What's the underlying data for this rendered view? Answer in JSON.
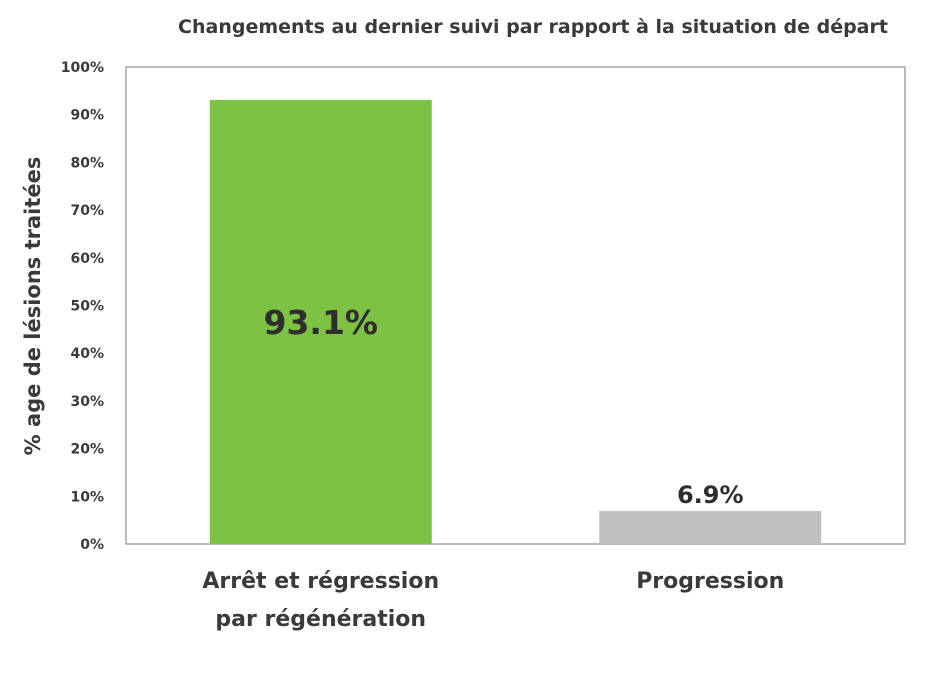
{
  "chart_data": {
    "type": "bar",
    "title": "Changements au dernier suivi par rapport à la situation de départ",
    "ylabel": "% age de lésions traitées",
    "xlabel": "",
    "ylim": [
      0,
      100
    ],
    "yticks": [
      "0%",
      "10%",
      "20%",
      "30%",
      "40%",
      "50%",
      "60%",
      "70%",
      "80%",
      "90%",
      "100%"
    ],
    "categories": [
      [
        "Arrêt et régression",
        "par régénération"
      ],
      [
        "Progression"
      ]
    ],
    "values": [
      93.1,
      6.9
    ],
    "data_labels": [
      "93.1%",
      "6.9%"
    ],
    "colors": [
      "#7dc242",
      "#bfbfbf"
    ],
    "grid": false,
    "legend": "none"
  }
}
